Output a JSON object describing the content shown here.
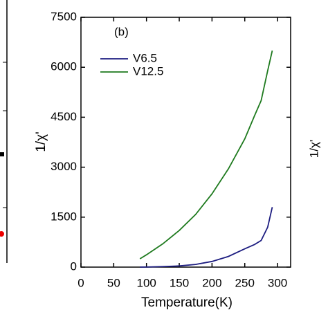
{
  "chart_data": {
    "type": "line",
    "panel_label": "(b)",
    "x_label": "Temperature(K)",
    "y_label": "1/χ'",
    "x": [
      90,
      100,
      125,
      150,
      175,
      200,
      225,
      250,
      265,
      275,
      285,
      292
    ],
    "series": [
      {
        "name": "V6.5",
        "color": "#1c1c80",
        "values": [
          0,
          2,
          15,
          35,
          80,
          170,
          320,
          550,
          680,
          800,
          1200,
          1800
        ]
      },
      {
        "name": "V12.5",
        "color": "#1e7a1e",
        "values": [
          250,
          370,
          700,
          1100,
          1580,
          2200,
          2950,
          3850,
          4550,
          5000,
          5900,
          6500
        ]
      }
    ],
    "xlim": [
      0,
      320
    ],
    "xticks": [
      0,
      50,
      100,
      150,
      200,
      250,
      300
    ],
    "ylim": [
      0,
      7500
    ],
    "yticks": [
      0,
      1500,
      3000,
      4500,
      6000,
      7500
    ],
    "legend": "upper left"
  },
  "neighbors": {
    "right_y_label": "1/χ'"
  }
}
